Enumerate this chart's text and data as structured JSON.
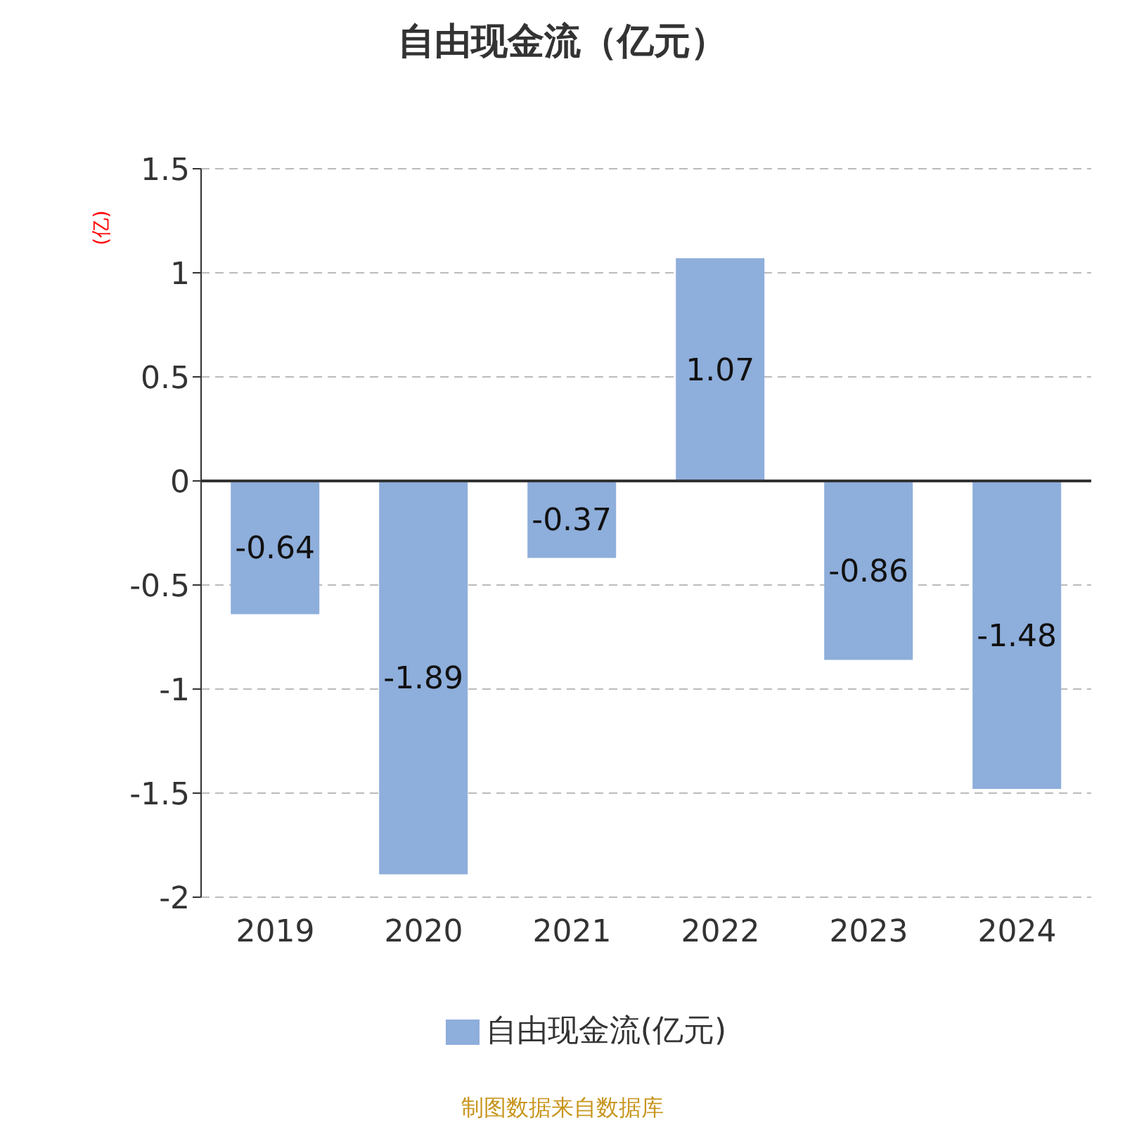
{
  "chart_data": {
    "type": "bar",
    "title": "自由现金流（亿元）",
    "ylabel": "(亿)",
    "categories": [
      "2019",
      "2020",
      "2021",
      "2022",
      "2023",
      "2024"
    ],
    "series": [
      {
        "name": "自由现金流(亿元)",
        "color": "#8eaedb",
        "values": [
          -0.64,
          -1.89,
          -0.37,
          1.07,
          -0.86,
          -1.48
        ]
      }
    ],
    "ylim": [
      -2,
      1.5
    ],
    "yticks": [
      -2,
      -1.5,
      -1,
      -0.5,
      0,
      0.5,
      1,
      1.5
    ],
    "grid": "y",
    "legend": "bottom",
    "data_labels": true,
    "annotations": [
      "制图数据来自数据库"
    ]
  }
}
